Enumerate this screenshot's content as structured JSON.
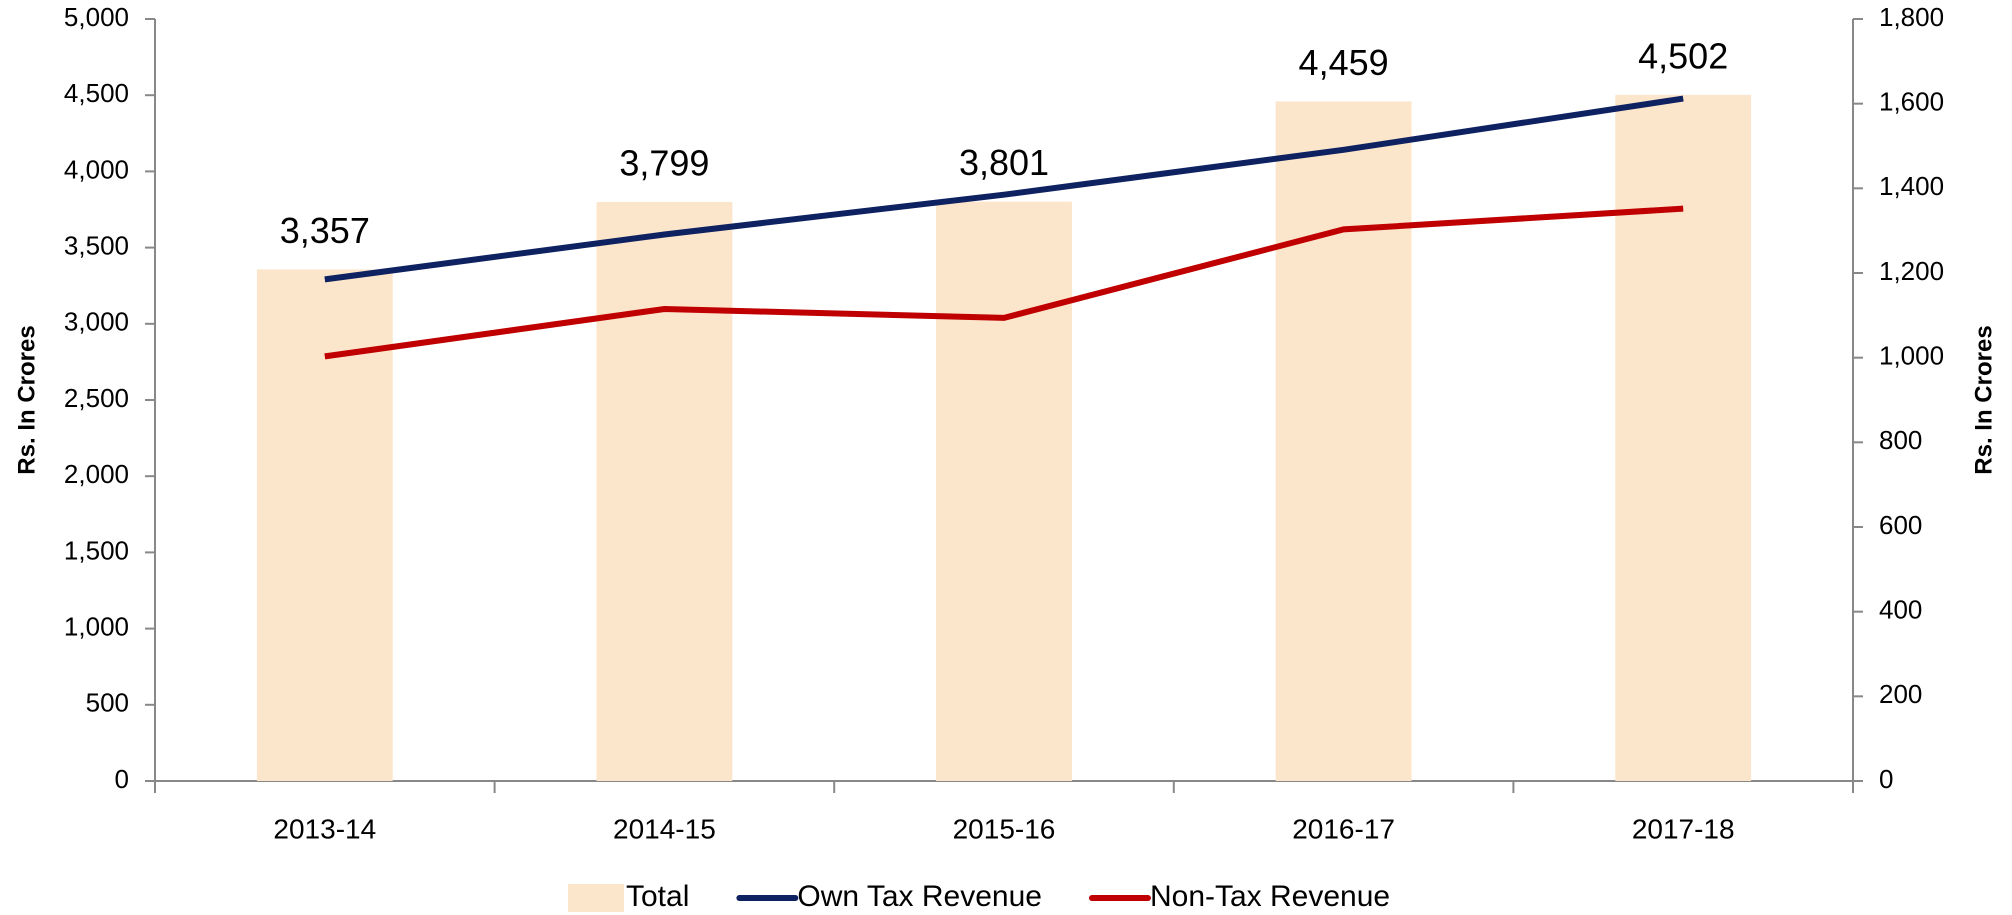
{
  "chart_data": {
    "type": "bar-line",
    "categories": [
      "2013-14",
      "2014-15",
      "2015-16",
      "2016-17",
      "2017-18"
    ],
    "series": [
      {
        "name": "Total",
        "type": "bar",
        "color": "#fbe5cb",
        "axis": "y",
        "values": [
          3357,
          3799,
          3801,
          4459,
          4502
        ],
        "value_labels": [
          "3,357",
          "3,799",
          "3,801",
          "4,459",
          "4,502"
        ]
      },
      {
        "name": "Own Tax Revenue",
        "type": "line",
        "color": "#0e2160",
        "axis": "y2",
        "values": [
          1185,
          1291,
          1385,
          1491,
          1612
        ]
      },
      {
        "name": "Non-Tax Revenue",
        "type": "line",
        "color": "#c00000",
        "axis": "y2",
        "values": [
          1003,
          1115,
          1094,
          1303,
          1352
        ]
      }
    ],
    "ylabel": "Rs. In Crores",
    "y2label": "Rs. In Crores",
    "ylim": [
      0,
      5000
    ],
    "yticks": [
      0,
      500,
      {
        "value": 1000,
        "label": "1,000"
      },
      {
        "value": 1500,
        "label": "1,500"
      },
      {
        "value": 2000,
        "label": "2,000"
      },
      {
        "value": 2500,
        "label": "2,500"
      },
      {
        "value": 3000,
        "label": "3,000"
      },
      {
        "value": 3500,
        "label": "3,500"
      },
      {
        "value": 4000,
        "label": "4,000"
      },
      {
        "value": 4500,
        "label": "4,500"
      },
      {
        "value": 5000,
        "label": "5,000"
      }
    ],
    "y2lim": [
      0,
      1800
    ],
    "y2ticks": [
      0,
      200,
      400,
      600,
      800,
      {
        "value": 1000,
        "label": "1,000"
      },
      {
        "value": 1200,
        "label": "1,200"
      },
      {
        "value": 1400,
        "label": "1,400"
      },
      {
        "value": 1600,
        "label": "1,600"
      },
      {
        "value": 1800,
        "label": "1,800"
      }
    ],
    "legend": "bottom"
  }
}
